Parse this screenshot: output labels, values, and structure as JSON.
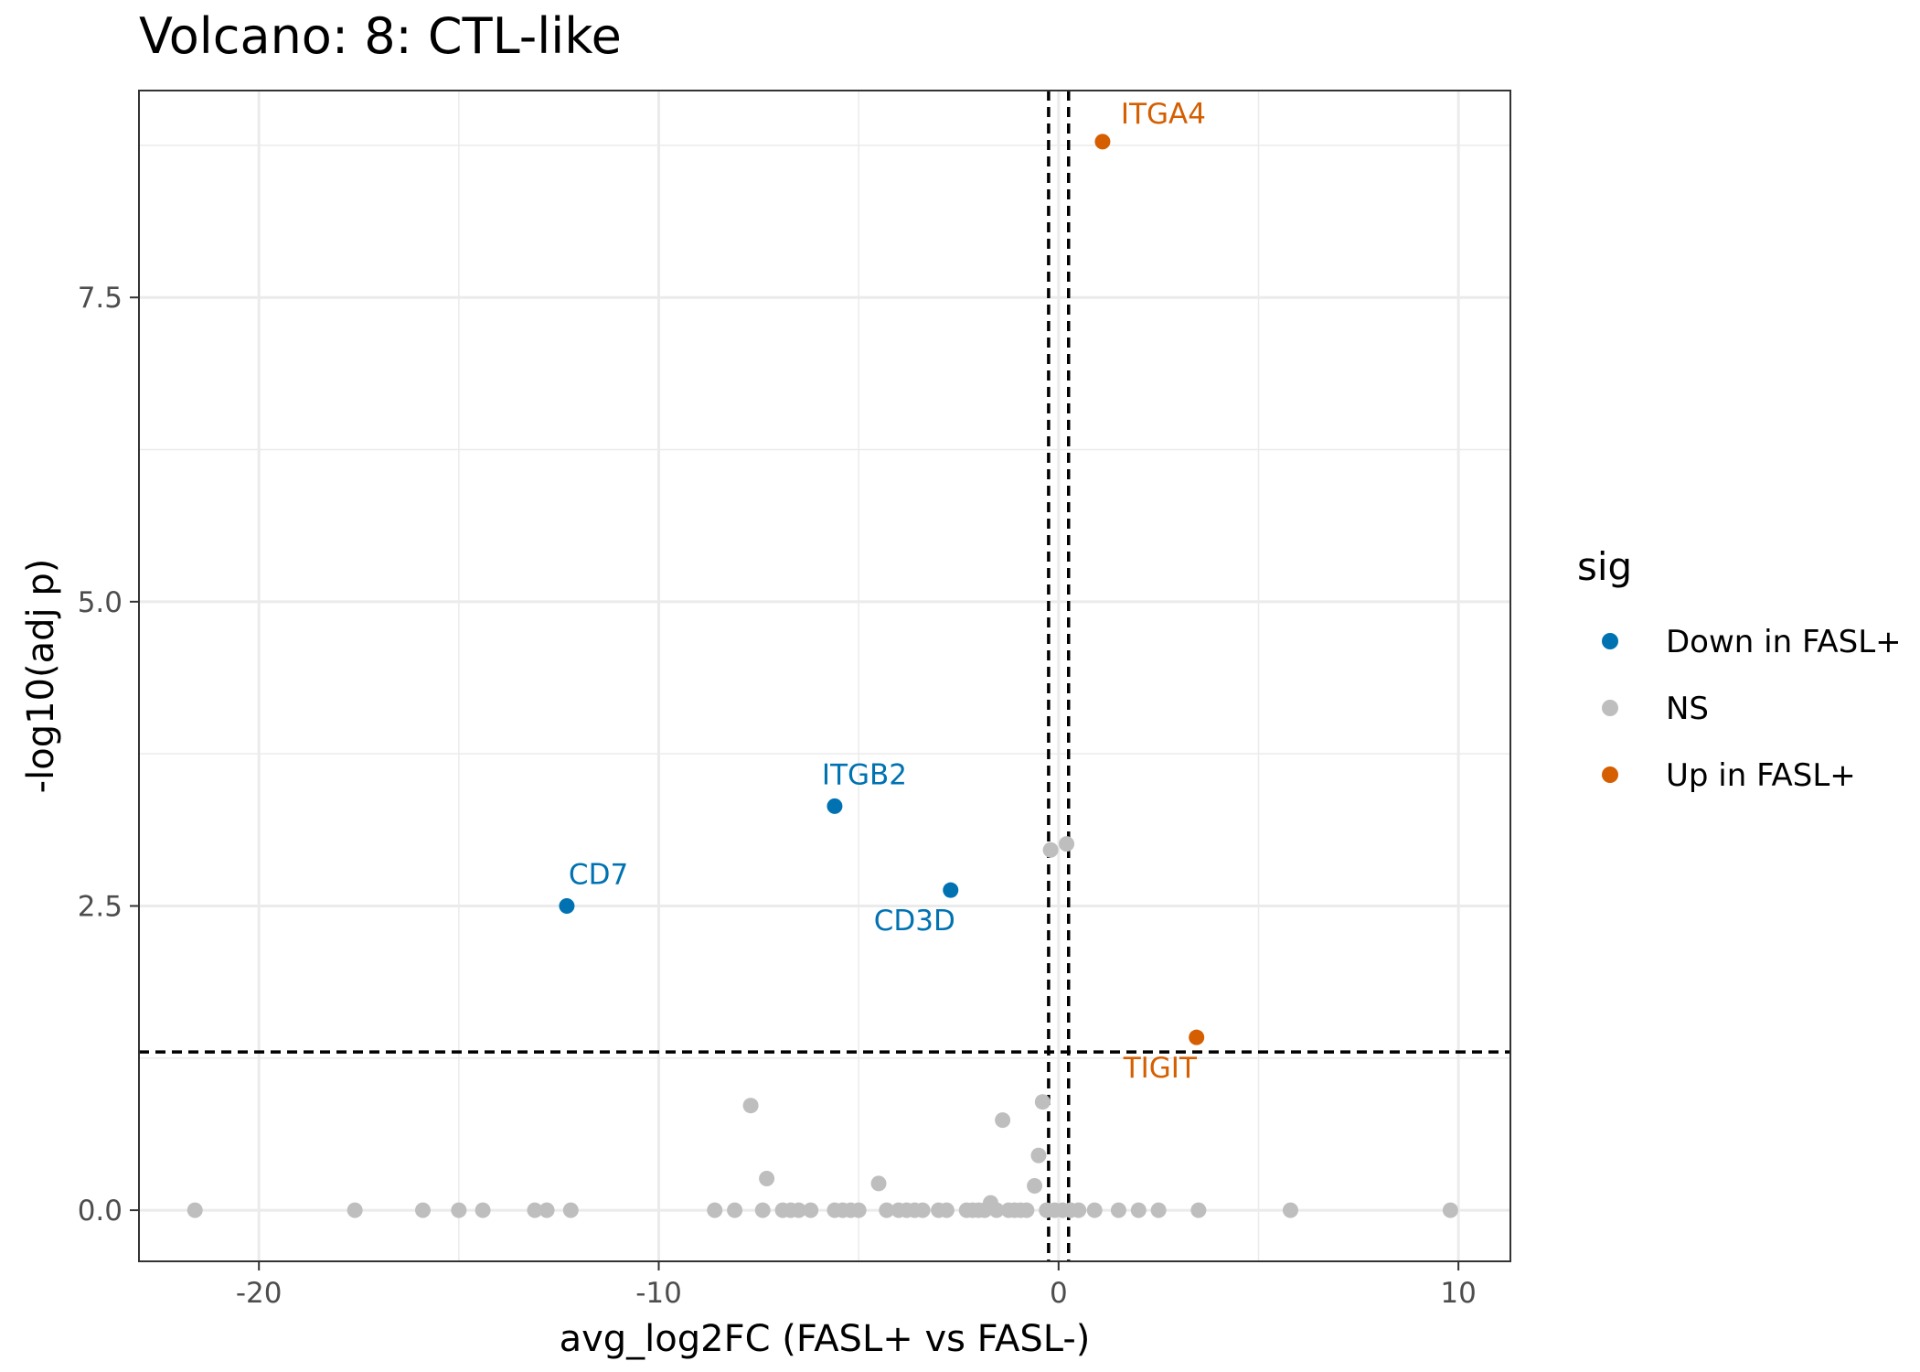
{
  "chart_data": {
    "type": "scatter",
    "title": "Volcano: 8: CTL-like",
    "xlabel": "avg_log2FC (FASL+ vs FASL-)",
    "ylabel": "-log10(adj p)",
    "xlim": [
      -23,
      11.3
    ],
    "ylim": [
      -0.42,
      9.2
    ],
    "x_ticks": [
      -20,
      -10,
      0,
      10
    ],
    "y_ticks": [
      0.0,
      2.5,
      5.0,
      7.5
    ],
    "x_tick_labels": [
      "-20",
      "-10",
      "0",
      "10"
    ],
    "y_tick_labels": [
      "0.0",
      "2.5",
      "5.0",
      "7.5"
    ],
    "grid": true,
    "thresholds": {
      "fc": [
        -0.25,
        0.25
      ],
      "padj_line": 1.3
    },
    "legend": {
      "title": "sig",
      "placement": "right",
      "entries": [
        {
          "key": "Down in FASL+",
          "label": "Down in FASL+",
          "color": "#0072B2"
        },
        {
          "key": "NS",
          "label": "NS",
          "color": "#BEBEBE"
        },
        {
          "key": "Up in FASL+",
          "label": "Up in FASL+",
          "color": "#D55E00"
        }
      ]
    },
    "series": [
      {
        "name": "Down in FASL+",
        "color": "#0072B2",
        "points": [
          {
            "x": -12.3,
            "y": 2.5,
            "label": "CD7"
          },
          {
            "x": -5.6,
            "y": 3.32,
            "label": "ITGB2"
          },
          {
            "x": -2.7,
            "y": 2.63,
            "label": "CD3D"
          }
        ]
      },
      {
        "name": "NS",
        "color": "#BEBEBE",
        "points": [
          {
            "x": -21.6,
            "y": 0
          },
          {
            "x": -17.6,
            "y": 0
          },
          {
            "x": -15.9,
            "y": 0
          },
          {
            "x": -15.0,
            "y": 0
          },
          {
            "x": -14.4,
            "y": 0
          },
          {
            "x": -13.1,
            "y": 0
          },
          {
            "x": -12.8,
            "y": 0
          },
          {
            "x": -12.2,
            "y": 0
          },
          {
            "x": -8.6,
            "y": 0
          },
          {
            "x": -8.1,
            "y": 0
          },
          {
            "x": -7.7,
            "y": 0.86
          },
          {
            "x": -7.4,
            "y": 0
          },
          {
            "x": -7.3,
            "y": 0.26
          },
          {
            "x": -6.9,
            "y": 0
          },
          {
            "x": -6.7,
            "y": 0
          },
          {
            "x": -6.5,
            "y": 0
          },
          {
            "x": -6.2,
            "y": 0
          },
          {
            "x": -5.6,
            "y": 0
          },
          {
            "x": -5.4,
            "y": 0
          },
          {
            "x": -5.2,
            "y": 0
          },
          {
            "x": -5.0,
            "y": 0
          },
          {
            "x": -4.5,
            "y": 0.22
          },
          {
            "x": -4.3,
            "y": 0
          },
          {
            "x": -4.0,
            "y": 0
          },
          {
            "x": -3.8,
            "y": 0
          },
          {
            "x": -3.6,
            "y": 0
          },
          {
            "x": -3.4,
            "y": 0
          },
          {
            "x": -3.0,
            "y": 0
          },
          {
            "x": -2.8,
            "y": 0
          },
          {
            "x": -2.3,
            "y": 0
          },
          {
            "x": -2.15,
            "y": 0
          },
          {
            "x": -2.0,
            "y": 0
          },
          {
            "x": -1.85,
            "y": 0
          },
          {
            "x": -1.7,
            "y": 0.06
          },
          {
            "x": -1.55,
            "y": 0
          },
          {
            "x": -1.4,
            "y": 0.74
          },
          {
            "x": -1.25,
            "y": 0
          },
          {
            "x": -1.1,
            "y": 0
          },
          {
            "x": -0.95,
            "y": 0
          },
          {
            "x": -0.8,
            "y": 0
          },
          {
            "x": -0.6,
            "y": 0.2
          },
          {
            "x": -0.5,
            "y": 0.45
          },
          {
            "x": -0.4,
            "y": 0.89
          },
          {
            "x": -0.2,
            "y": 2.96
          },
          {
            "x": 0.2,
            "y": 3.01
          },
          {
            "x": -0.3,
            "y": 0
          },
          {
            "x": -0.1,
            "y": 0
          },
          {
            "x": 0.1,
            "y": 0
          },
          {
            "x": 0.3,
            "y": 0
          },
          {
            "x": 0.5,
            "y": 0
          },
          {
            "x": 0.9,
            "y": 0
          },
          {
            "x": 1.5,
            "y": 0
          },
          {
            "x": 2.0,
            "y": 0
          },
          {
            "x": 2.5,
            "y": 0
          },
          {
            "x": 3.5,
            "y": 0
          },
          {
            "x": 5.8,
            "y": 0
          },
          {
            "x": 9.8,
            "y": 0
          }
        ]
      },
      {
        "name": "Up in FASL+",
        "color": "#D55E00",
        "points": [
          {
            "x": 1.1,
            "y": 8.78,
            "label": "ITGA4"
          },
          {
            "x": 3.45,
            "y": 1.42,
            "label": "TIGIT"
          }
        ]
      }
    ]
  }
}
